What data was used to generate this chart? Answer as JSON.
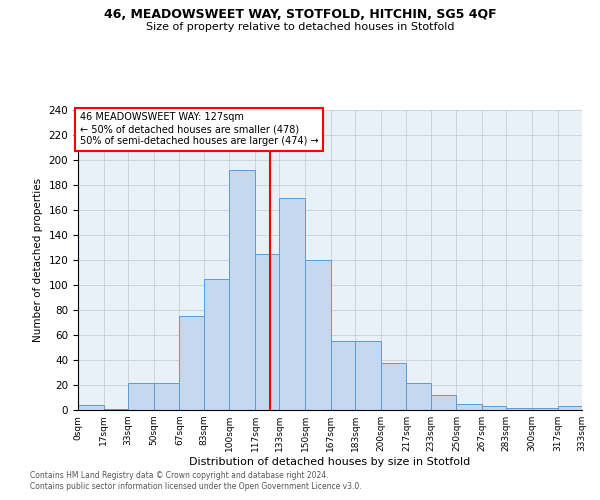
{
  "title1": "46, MEADOWSWEET WAY, STOTFOLD, HITCHIN, SG5 4QF",
  "title2": "Size of property relative to detached houses in Stotfold",
  "xlabel": "Distribution of detached houses by size in Stotfold",
  "ylabel": "Number of detached properties",
  "annotation_line1": "46 MEADOWSWEET WAY: 127sqm",
  "annotation_line2": "← 50% of detached houses are smaller (478)",
  "annotation_line3": "50% of semi-detached houses are larger (474) →",
  "bin_edges": [
    0,
    17,
    33,
    50,
    67,
    83,
    100,
    117,
    133,
    150,
    167,
    183,
    200,
    217,
    233,
    250,
    267,
    283,
    300,
    317,
    333
  ],
  "bar_heights": [
    4,
    1,
    22,
    22,
    75,
    105,
    192,
    125,
    170,
    120,
    55,
    55,
    38,
    22,
    12,
    5,
    3,
    2,
    2,
    3
  ],
  "bar_color": "#c5d8f0",
  "bar_edge_color": "#5b9bd5",
  "vline_color": "red",
  "vline_x": 127,
  "grid_color": "#c8c8c8",
  "footer1": "Contains HM Land Registry data © Crown copyright and database right 2024.",
  "footer2": "Contains public sector information licensed under the Open Government Licence v3.0.",
  "ylim": [
    0,
    240
  ],
  "yticks": [
    0,
    20,
    40,
    60,
    80,
    100,
    120,
    140,
    160,
    180,
    200,
    220,
    240
  ],
  "bg_color": "#e8f0f8"
}
